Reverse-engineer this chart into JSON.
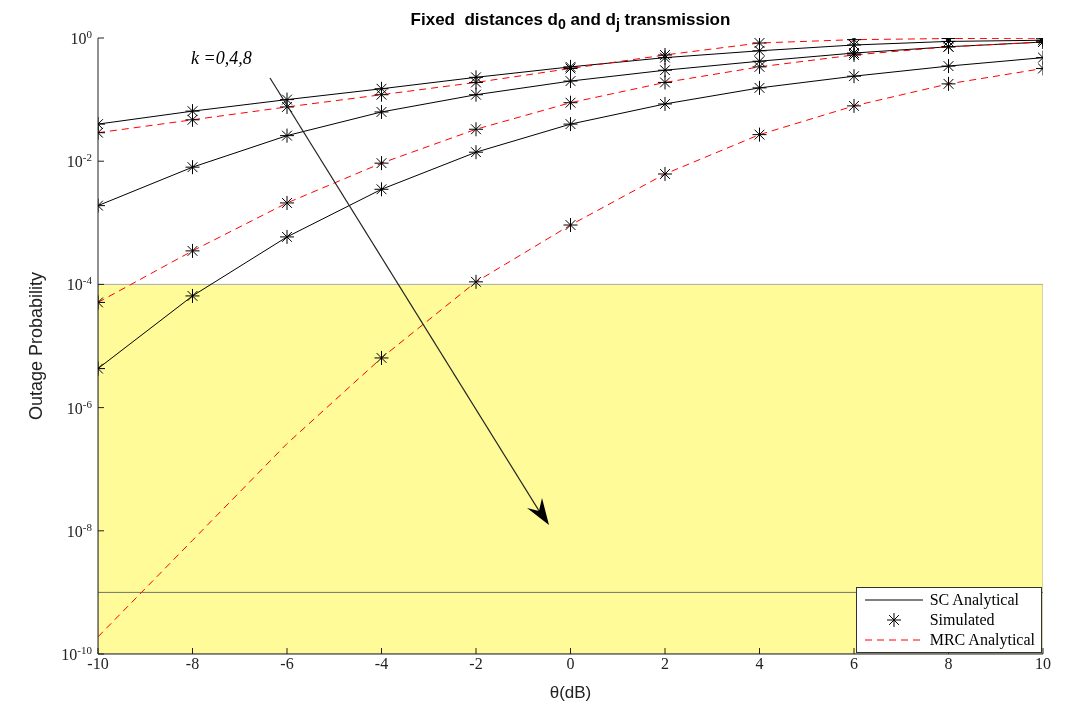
{
  "chart_data": {
    "type": "line",
    "title": "Fixed  distances d$_{0}$ and d$_{j}$ transmission",
    "xlabel": "θ(dB)",
    "ylabel": "Outage Probability",
    "log": "y",
    "xlim": [
      -10,
      10
    ],
    "xticks": [
      -10,
      -8,
      -6,
      -4,
      -2,
      0,
      2,
      4,
      6,
      8,
      10
    ],
    "ylim": [
      1e-10,
      1
    ],
    "yticks": [
      {
        "value": 1e-10,
        "label": "10$^{-10}$"
      },
      {
        "value": 1e-08,
        "label": "10$^{-8}$"
      },
      {
        "value": 1e-06,
        "label": "10$^{-6}$"
      },
      {
        "value": 0.0001,
        "label": "10$^{-4}$"
      },
      {
        "value": 0.01,
        "label": "10$^{-2}$"
      },
      {
        "value": 1,
        "label": "10$^{0}$"
      }
    ],
    "grid": false,
    "legend": "bottom right",
    "x": [
      -10,
      -8,
      -6,
      -4,
      -2,
      0,
      2,
      4,
      6,
      8,
      10
    ],
    "series": [
      {
        "name": "SC Analytical",
        "color": "#000000",
        "line_style": "solid",
        "marker": "none",
        "values": [
          0.04,
          0.065,
          0.1,
          0.15,
          0.23,
          0.34,
          0.48,
          0.62,
          0.77,
          0.88,
          0.92
        ]
      },
      {
        "type": "line",
        "color": "#000000",
        "line_style": "solid",
        "marker": "none",
        "values": [
          0.0019,
          0.008,
          0.026,
          0.063,
          0.12,
          0.2,
          0.3,
          0.42,
          0.57,
          0.72,
          0.86
        ]
      },
      {
        "type": "line",
        "color": "#000000",
        "line_style": "solid",
        "marker": "none",
        "values": [
          4.3e-06,
          6.5e-05,
          0.00059,
          0.0035,
          0.014,
          0.04,
          0.085,
          0.155,
          0.24,
          0.35,
          0.48
        ]
      },
      {
        "name": "Simulated",
        "type": "scatter",
        "color": "#000000",
        "marker": "cross",
        "x": [
          -10,
          -8,
          -6,
          -4,
          -2,
          0,
          2,
          4,
          6,
          8,
          10,
          -10,
          -8,
          -6,
          -4,
          -2,
          0,
          2,
          4,
          6,
          8,
          10,
          -10,
          -8,
          -6,
          -4,
          -2,
          0,
          2,
          4,
          6,
          8,
          10,
          -10,
          -8,
          -6,
          -4,
          -2,
          0,
          2,
          4,
          6,
          8,
          10,
          -10,
          -8,
          -6,
          -4,
          -2,
          0,
          2,
          4,
          6,
          8,
          10,
          -4,
          -2,
          0,
          2,
          4,
          6,
          8,
          10
        ],
        "values": [
          0.04,
          0.065,
          0.1,
          0.15,
          0.23,
          0.34,
          0.48,
          0.62,
          0.77,
          0.88,
          0.92,
          0.0019,
          0.008,
          0.026,
          0.063,
          0.12,
          0.2,
          0.3,
          0.42,
          0.57,
          0.72,
          0.86,
          4.3e-06,
          6.5e-05,
          0.00059,
          0.0035,
          0.014,
          0.04,
          0.085,
          0.155,
          0.24,
          0.35,
          0.48,
          0.029,
          0.047,
          0.076,
          0.12,
          0.19,
          0.32,
          0.53,
          0.83,
          0.94,
          0.98,
          0.99,
          5.1e-05,
          0.00035,
          0.0021,
          0.0093,
          0.033,
          0.089,
          0.19,
          0.34,
          0.53,
          0.72,
          0.86,
          6.4e-06,
          0.00011,
          0.00092,
          0.0062,
          0.027,
          0.079,
          0.18,
          0.32
        ]
      },
      {
        "name": "MRC Analytical",
        "color": "#ff0000",
        "line_style": "dashed",
        "marker": "none",
        "values": [
          0.029,
          0.047,
          0.076,
          0.12,
          0.19,
          0.32,
          0.53,
          0.83,
          0.94,
          0.98,
          0.99
        ]
      },
      {
        "type": "line",
        "color": "#ff0000",
        "line_style": "dashed",
        "marker": "none",
        "values": [
          5.1e-05,
          0.00035,
          0.0021,
          0.0093,
          0.033,
          0.089,
          0.19,
          0.34,
          0.53,
          0.72,
          0.86
        ]
      },
      {
        "type": "line",
        "color": "#ff0000",
        "line_style": "dashed",
        "marker": "none",
        "values": [
          1.9e-10,
          7e-09,
          2.6e-07,
          6.4e-06,
          0.00011,
          0.00092,
          0.0062,
          0.027,
          0.079,
          0.18,
          0.32
        ]
      }
    ],
    "bands": [
      {
        "axis": "y",
        "from": 1e-10,
        "to": 0.0001,
        "color": "#fffb99"
      }
    ],
    "ref_lines": [
      {
        "axis": "y",
        "value": 1e-09,
        "color": "#707070",
        "line_style": "solid"
      }
    ],
    "annotations": [
      "k =0,4,8"
    ]
  }
}
